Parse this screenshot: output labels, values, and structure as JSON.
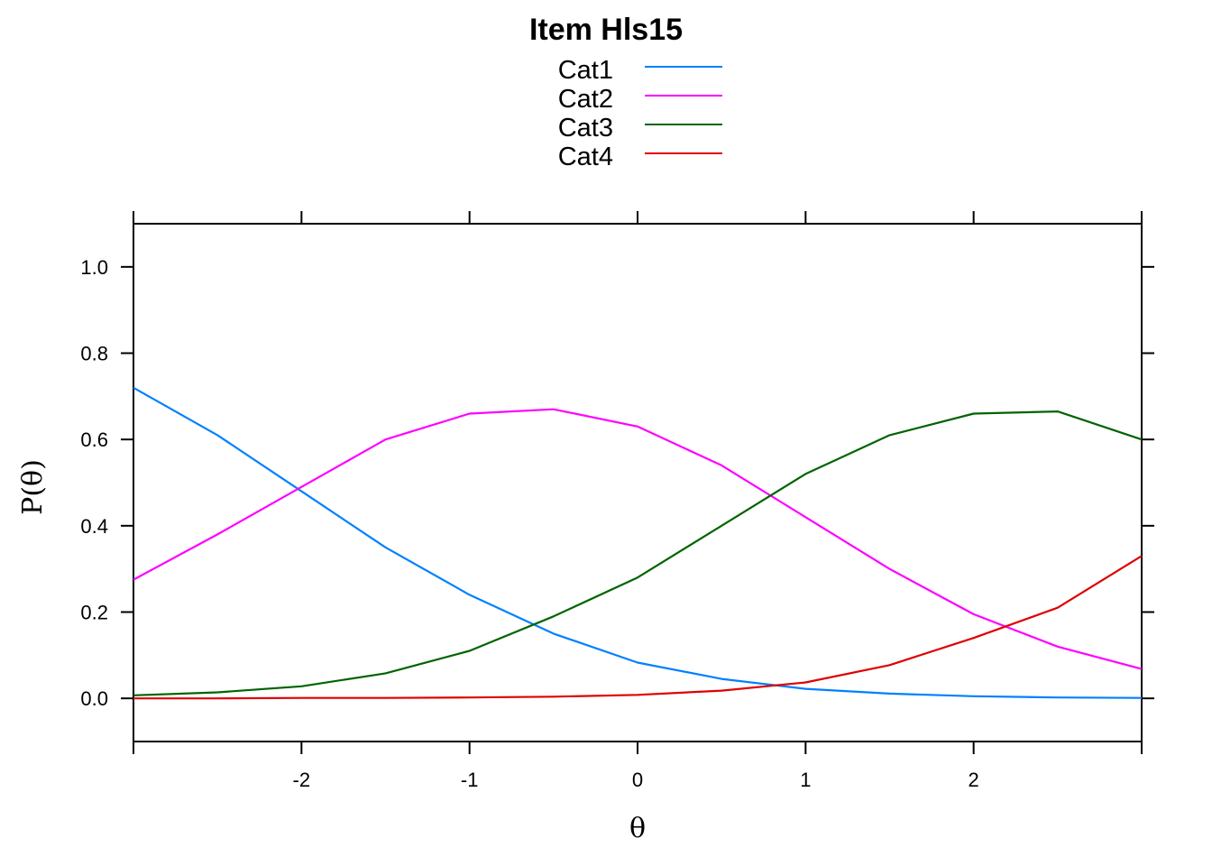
{
  "chart_data": {
    "type": "line",
    "title": "Item Hls15",
    "xlabel": "θ",
    "ylabel": "P(θ)",
    "xlim": [
      -3,
      3
    ],
    "ylim": [
      -0.1,
      1.1
    ],
    "x_ticks": [
      -2,
      -1,
      0,
      1,
      2
    ],
    "x_tick_labels": [
      "-2",
      "-1",
      "0",
      "1",
      "2"
    ],
    "y_ticks": [
      0.0,
      0.2,
      0.4,
      0.6,
      0.8,
      1.0
    ],
    "y_tick_labels": [
      "0.0",
      "0.2",
      "0.4",
      "0.6",
      "0.8",
      "1.0"
    ],
    "legend_position": "top-center",
    "grid": false,
    "x": [
      -3.0,
      -2.5,
      -2.0,
      -1.5,
      -1.0,
      -0.5,
      0.0,
      0.5,
      1.0,
      1.5,
      2.0,
      2.5,
      3.0
    ],
    "series": [
      {
        "name": "Cat1",
        "color": "#0080ff",
        "values": [
          0.72,
          0.61,
          0.48,
          0.35,
          0.24,
          0.15,
          0.083,
          0.045,
          0.022,
          0.011,
          0.005,
          0.002,
          0.001
        ]
      },
      {
        "name": "Cat2",
        "color": "#ff00ff",
        "values": [
          0.275,
          0.38,
          0.49,
          0.6,
          0.66,
          0.67,
          0.63,
          0.54,
          0.42,
          0.3,
          0.195,
          0.12,
          0.068
        ]
      },
      {
        "name": "Cat3",
        "color": "#006400",
        "values": [
          0.007,
          0.014,
          0.028,
          0.058,
          0.11,
          0.19,
          0.28,
          0.4,
          0.52,
          0.61,
          0.66,
          0.665,
          0.6
        ]
      },
      {
        "name": "Cat4",
        "color": "#e00000",
        "values": [
          0.0,
          0.0,
          0.001,
          0.001,
          0.002,
          0.004,
          0.008,
          0.018,
          0.037,
          0.077,
          0.14,
          0.21,
          0.33
        ]
      }
    ]
  }
}
